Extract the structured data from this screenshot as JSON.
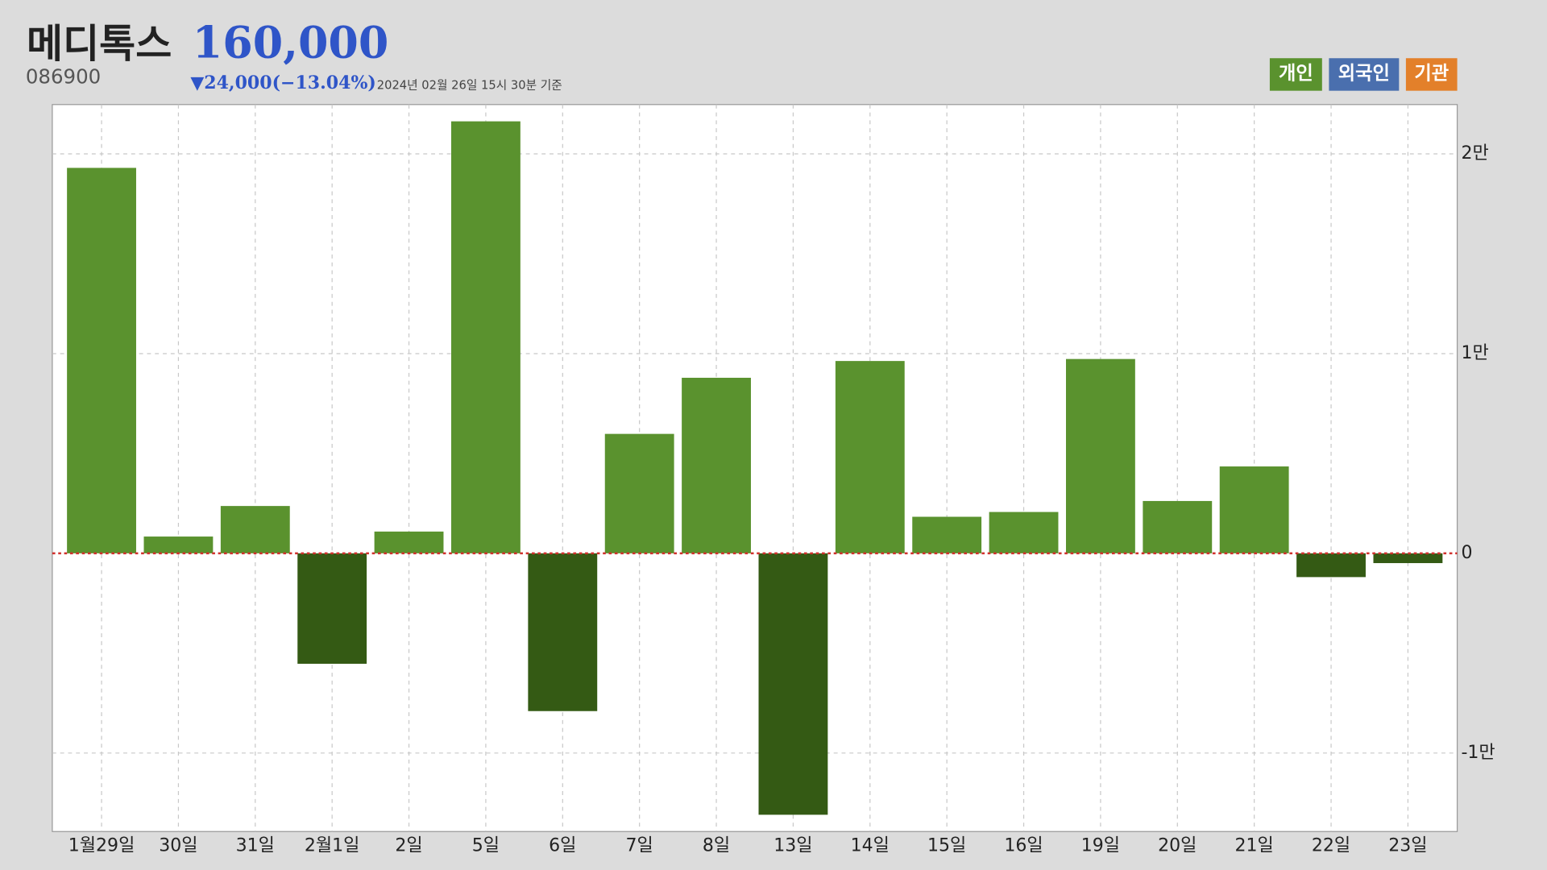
{
  "header": {
    "name": "메디톡스",
    "price": "160,000",
    "code": "086900",
    "change": "▼24,000(−13.04%)",
    "timestamp": "2024년 02월 26일 15시 30분 기준"
  },
  "tabs": [
    {
      "label": "개인",
      "color": "#5a922e"
    },
    {
      "label": "외국인",
      "color": "#4a6fae"
    },
    {
      "label": "기관",
      "color": "#e3802a"
    }
  ],
  "chart_data": {
    "type": "bar",
    "categories": [
      "1월29일",
      "30일",
      "31일",
      "2월1일",
      "2일",
      "5일",
      "6일",
      "7일",
      "8일",
      "13일",
      "14일",
      "15일",
      "16일",
      "19일",
      "20일",
      "21일",
      "22일",
      "23일"
    ],
    "values": [
      19300,
      840,
      2370,
      -5530,
      1090,
      21630,
      -7900,
      5980,
      8790,
      -13090,
      9630,
      1830,
      2070,
      9730,
      2620,
      4350,
      -1190,
      -490
    ],
    "colors": {
      "positive": "#5a922e",
      "negative": "#345a14"
    },
    "ylim": [
      -13930,
      22470
    ],
    "yticks": [
      {
        "value": -10000,
        "label": "-1만"
      },
      0,
      {
        "value": 10000,
        "label": "1만"
      },
      {
        "value": 20000,
        "label": "2만"
      }
    ],
    "grid": true
  }
}
